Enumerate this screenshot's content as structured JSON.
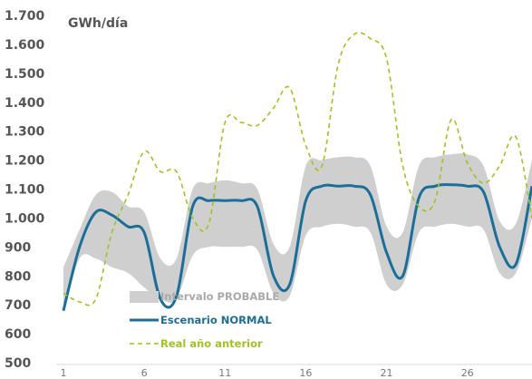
{
  "chart_data": {
    "type": "line",
    "unit_label": "GWh/día",
    "ylim": [
      500,
      1700
    ],
    "yticks": [
      "500",
      "600",
      "700",
      "800",
      "900",
      "1.000",
      "1.100",
      "1.200",
      "1.300",
      "1.400",
      "1.500",
      "1.600",
      "1.700"
    ],
    "ytick_values": [
      500,
      600,
      700,
      800,
      900,
      1000,
      1100,
      1200,
      1300,
      1400,
      1500,
      1600,
      1700
    ],
    "x": [
      1,
      2,
      3,
      4,
      5,
      6,
      7,
      8,
      9,
      10,
      11,
      12,
      13,
      14,
      15,
      16,
      17,
      18,
      19,
      20,
      21,
      22,
      23,
      24,
      25,
      26,
      27,
      28,
      29,
      30
    ],
    "xticks": [
      "1",
      "6",
      "11",
      "16",
      "21",
      "26"
    ],
    "xtick_values": [
      1,
      6,
      11,
      16,
      21,
      26
    ],
    "xlim": [
      1,
      30
    ],
    "grid": false,
    "legend_position": "bottom-left",
    "series": [
      {
        "name": "Intervalo PROBABLE",
        "kind": "band",
        "color": "#cfcfcf",
        "lower": [
          670,
          860,
          860,
          830,
          810,
          760,
          720,
          720,
          870,
          900,
          900,
          900,
          890,
          740,
          730,
          940,
          970,
          980,
          970,
          950,
          770,
          770,
          950,
          970,
          980,
          970,
          960,
          810,
          810,
          1000
        ],
        "upper": [
          830,
          960,
          1080,
          1090,
          1040,
          1020,
          860,
          860,
          1100,
          1120,
          1130,
          1120,
          1100,
          910,
          900,
          1180,
          1200,
          1210,
          1210,
          1180,
          970,
          950,
          1180,
          1210,
          1220,
          1220,
          1180,
          990,
          980,
          1200
        ]
      },
      {
        "name": "Escenario NORMAL",
        "kind": "line",
        "color": "#1a6e98",
        "values": [
          680,
          900,
          1020,
          1010,
          970,
          950,
          720,
          730,
          1040,
          1060,
          1060,
          1060,
          1040,
          800,
          770,
          1060,
          1110,
          1110,
          1110,
          1080,
          880,
          800,
          1070,
          1110,
          1115,
          1110,
          1090,
          900,
          840,
          1110
        ]
      },
      {
        "name": "Real año anterior",
        "kind": "line",
        "dashed": true,
        "color": "#9ec41e",
        "values": [
          740,
          710,
          720,
          950,
          1080,
          1230,
          1160,
          1160,
          1000,
          980,
          1330,
          1330,
          1320,
          1380,
          1450,
          1250,
          1180,
          1530,
          1635,
          1620,
          1550,
          1180,
          1040,
          1060,
          1340,
          1190,
          1120,
          1180,
          1280,
          1000
        ]
      }
    ]
  }
}
